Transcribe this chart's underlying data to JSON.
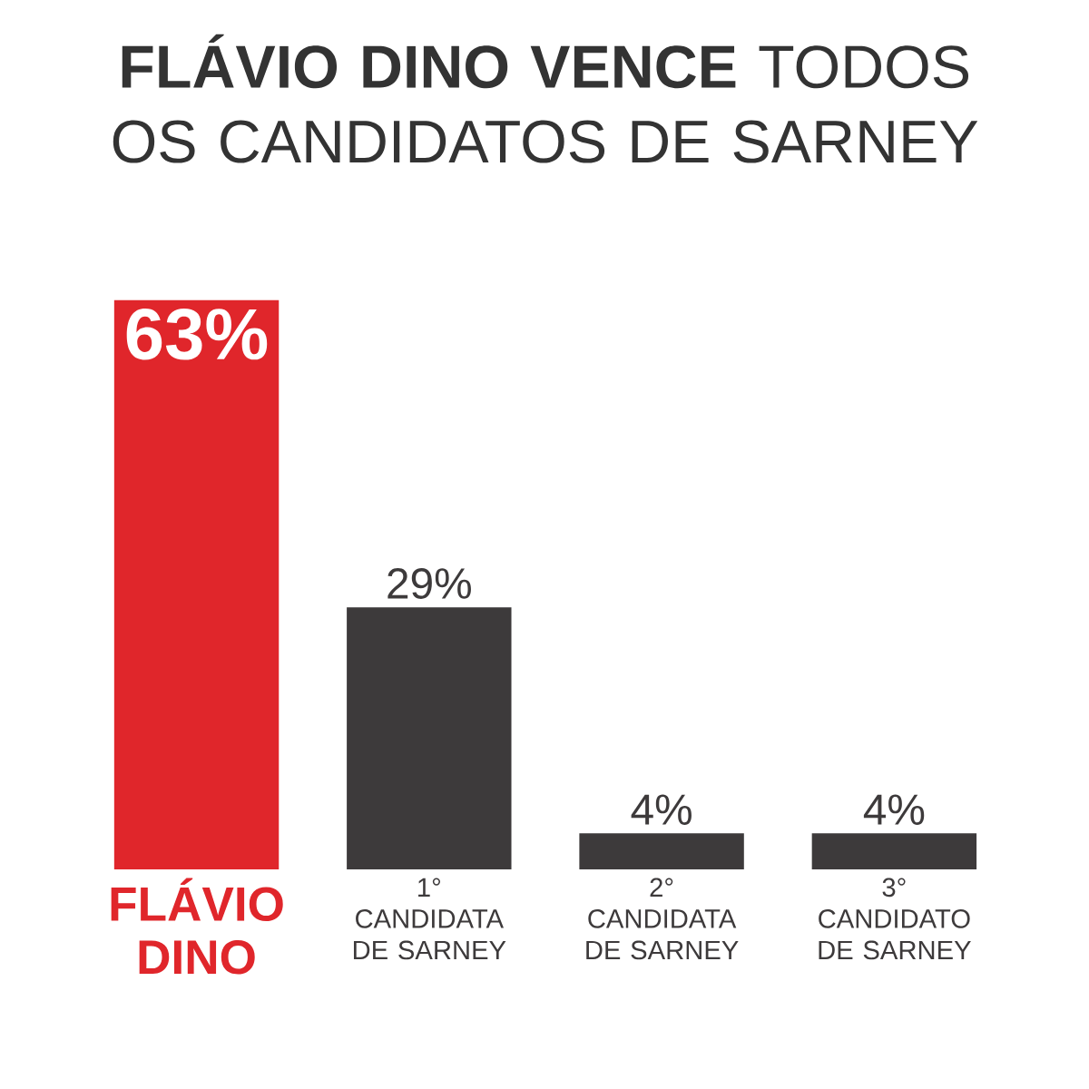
{
  "chart_data": {
    "type": "bar",
    "title": "**FLÁVIO DINO VENCE** TODOS OS CANDIDATOS DE SARNEY",
    "categories": [
      "FLÁVIO DINO",
      "1° CANDIDATA DE SARNEY",
      "2° CANDIDATA DE SARNEY",
      "3° CANDIDATO DE SARNEY"
    ],
    "values": [
      63,
      29,
      4,
      4
    ],
    "colors": [
      "#e0262b",
      "#3d3a3b",
      "#3d3a3b",
      "#3d3a3b"
    ],
    "value_labels": [
      "63%",
      "29%",
      "4%",
      "4%"
    ]
  }
}
